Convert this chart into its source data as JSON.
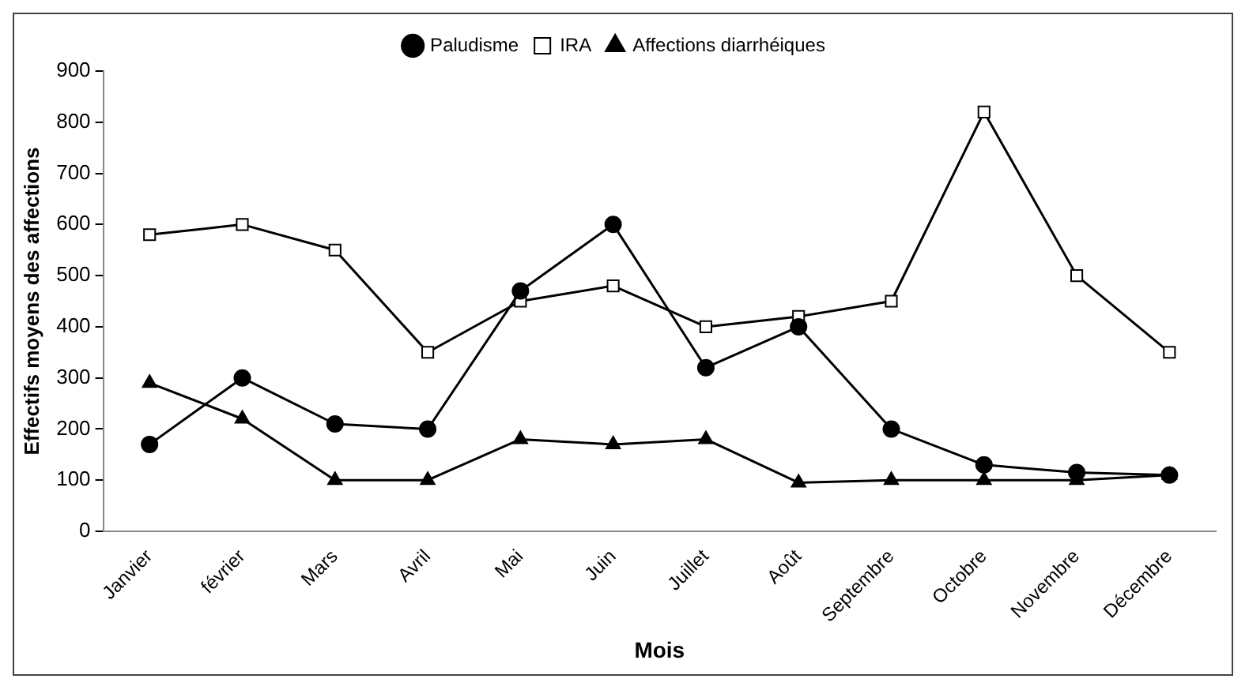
{
  "chart_data": {
    "type": "line",
    "xlabel": "Mois",
    "ylabel": "Effectifs moyens des affections",
    "categories": [
      "Janvier",
      "février",
      "Mars",
      "Avril",
      "Mai",
      "Juin",
      "Juillet",
      "Août",
      "Septembre",
      "Octobre",
      "Novembre",
      "Décembre"
    ],
    "series": [
      {
        "name": "Paludisme",
        "color": "#000000",
        "marker": "circle",
        "values": [
          170,
          300,
          210,
          200,
          470,
          600,
          320,
          400,
          200,
          130,
          115,
          110
        ]
      },
      {
        "name": "IRA",
        "color": "#000000",
        "marker": "square",
        "values": [
          580,
          600,
          550,
          350,
          450,
          480,
          400,
          420,
          450,
          820,
          500,
          350
        ]
      },
      {
        "name": "Affections diarrhéiques",
        "color": "#000000",
        "marker": "triangle",
        "values": [
          290,
          220,
          100,
          100,
          180,
          170,
          180,
          95,
          100,
          100,
          100,
          110
        ]
      }
    ],
    "ylim": [
      0,
      900
    ],
    "yticks": [
      0,
      100,
      200,
      300,
      400,
      500,
      600,
      700,
      800,
      900
    ],
    "grid": false,
    "legend": "top"
  }
}
